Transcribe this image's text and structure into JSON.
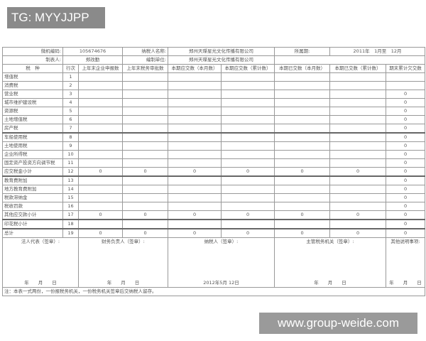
{
  "banner": "TG: MYYJJPP",
  "watermark": "www.group-weide.com",
  "header": {
    "code_label": "微机编码:",
    "code_value": "105674676",
    "taxpayer_label": "纳税人名称:",
    "taxpayer_value": "郑州天璨星光文化传播有限公司",
    "period_label": "所属期:",
    "period_value": "2011年　1月至　12月",
    "preparer_label": "制表人:",
    "preparer_value": "郑改勤",
    "unit_label": "编制单位:",
    "unit_value": "郑州天璨星光文化传播有限公司"
  },
  "columns": [
    "税　种",
    "行次",
    "上年末企业申报数",
    "上年末税务审批数",
    "本期应交数（本月数）",
    "本期应交数（累计数）",
    "本期已交数（本月数）",
    "本期已交数（累计数）",
    "期末累计欠交数"
  ],
  "rows": [
    [
      "增值税",
      "1",
      "",
      "",
      "",
      "",
      "",
      "",
      ""
    ],
    [
      "消费税",
      "2",
      "",
      "",
      "",
      "",
      "",
      "",
      ""
    ],
    [
      "营业税",
      "3",
      "",
      "",
      "",
      "",
      "",
      "",
      "0"
    ],
    [
      "城市维护建设税",
      "4",
      "",
      "",
      "",
      "",
      "",
      "",
      "0"
    ],
    [
      "资源税",
      "5",
      "",
      "",
      "",
      "",
      "",
      "",
      "0"
    ],
    [
      "土地增值税",
      "6",
      "",
      "",
      "",
      "",
      "",
      "",
      "0"
    ],
    [
      "房产税",
      "7",
      "",
      "",
      "",
      "",
      "",
      "",
      "0"
    ],
    [
      "车船使用税",
      "8",
      "",
      "",
      "",
      "",
      "",
      "",
      "0"
    ],
    [
      "土地使用税",
      "9",
      "",
      "",
      "",
      "",
      "",
      "",
      "0"
    ],
    [
      "企业所得税",
      "10",
      "",
      "",
      "",
      "",
      "",
      "",
      "0"
    ],
    [
      "固定资产投资方向调节税",
      "11",
      "",
      "",
      "",
      "",
      "",
      "",
      "0"
    ],
    [
      "应交税金小计",
      "12",
      "0",
      "0",
      "0",
      "0",
      "0",
      "0",
      "0"
    ],
    [
      "教育费附加",
      "13",
      "",
      "",
      "",
      "",
      "",
      "",
      "0"
    ],
    [
      "地方教育费附加",
      "14",
      "",
      "",
      "",
      "",
      "",
      "",
      "0"
    ],
    [
      "税款滞纳金",
      "15",
      "",
      "",
      "",
      "",
      "",
      "",
      "0"
    ],
    [
      "税收罚款",
      "16",
      "",
      "",
      "",
      "",
      "",
      "",
      "0"
    ],
    [
      "其他应交款小计",
      "17",
      "0",
      "0",
      "0",
      "0",
      "0",
      "0",
      "0"
    ],
    [
      "印花税小计",
      "18",
      "",
      "",
      "",
      "",
      "",
      "",
      "0"
    ],
    [
      "总计",
      "19",
      "0",
      "0",
      "0",
      "0",
      "0",
      "0",
      "0"
    ]
  ],
  "signatures": [
    {
      "label": "法人代表（签章）:",
      "date": "年　　月　　日"
    },
    {
      "label": "财务负责人（签章）:",
      "date": "年　　月　　日"
    },
    {
      "label": "纳税人（签章）:",
      "date": "2012年5月 12日"
    },
    {
      "label": "主管税务机关（签章）:",
      "date": "年　　月　　日"
    },
    {
      "label": "其他说明事项:",
      "date": "年　　月　　日"
    }
  ],
  "note": "注：本表一式两份，一份报税务机关，一份税务机关签章后交纳税人留存。"
}
